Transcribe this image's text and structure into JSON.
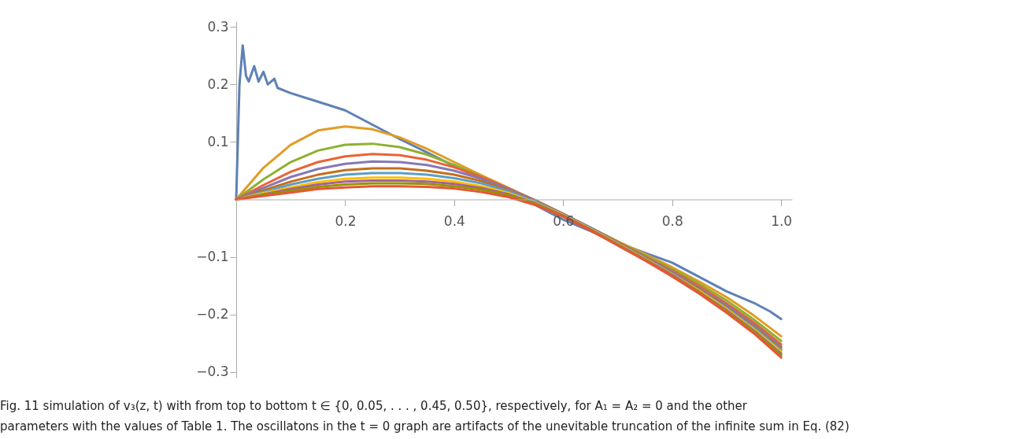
{
  "chart_data": {
    "type": "line",
    "x": [
      0,
      0.05,
      0.1,
      0.15,
      0.2,
      0.25,
      0.3,
      0.35,
      0.4,
      0.45,
      0.5,
      0.55,
      0.6,
      0.65,
      0.7,
      0.75,
      0.8,
      0.85,
      0.9,
      0.95,
      1.0
    ],
    "series": [
      {
        "color": "#5e81b5",
        "x": [
          0,
          0.006,
          0.012,
          0.018,
          0.023,
          0.033,
          0.041,
          0.05,
          0.058,
          0.07,
          0.076,
          0.1,
          0.15,
          0.2,
          0.25,
          0.3,
          0.35,
          0.4,
          0.45,
          0.5,
          0.55,
          0.6,
          0.65,
          0.7,
          0.75,
          0.8,
          0.85,
          0.9,
          0.95,
          0.98,
          1.0
        ],
        "values": [
          0,
          0.2,
          0.268,
          0.215,
          0.205,
          0.232,
          0.205,
          0.222,
          0.2,
          0.21,
          0.194,
          0.185,
          0.17,
          0.155,
          0.13,
          0.105,
          0.082,
          0.058,
          0.036,
          0.015,
          -0.01,
          -0.035,
          -0.055,
          -0.075,
          -0.093,
          -0.11,
          -0.135,
          -0.16,
          -0.18,
          -0.195,
          -0.208
        ]
      },
      {
        "color": "#e19c24",
        "values": [
          0,
          0.055,
          0.095,
          0.12,
          0.127,
          0.122,
          0.108,
          0.088,
          0.065,
          0.042,
          0.02,
          -0.003,
          -0.027,
          -0.05,
          -0.073,
          -0.095,
          -0.118,
          -0.143,
          -0.17,
          -0.202,
          -0.238
        ]
      },
      {
        "color": "#8fb032",
        "values": [
          0,
          0.035,
          0.065,
          0.085,
          0.095,
          0.097,
          0.091,
          0.078,
          0.06,
          0.04,
          0.019,
          -0.003,
          -0.026,
          -0.049,
          -0.073,
          -0.097,
          -0.121,
          -0.147,
          -0.176,
          -0.209,
          -0.246
        ]
      },
      {
        "color": "#eb6235",
        "values": [
          0,
          0.025,
          0.048,
          0.065,
          0.075,
          0.079,
          0.077,
          0.069,
          0.056,
          0.039,
          0.019,
          -0.002,
          -0.025,
          -0.049,
          -0.074,
          -0.099,
          -0.124,
          -0.151,
          -0.181,
          -0.214,
          -0.252
        ]
      },
      {
        "color": "#8778b3",
        "values": [
          0,
          0.02,
          0.039,
          0.053,
          0.062,
          0.066,
          0.065,
          0.06,
          0.05,
          0.036,
          0.018,
          -0.002,
          -0.025,
          -0.049,
          -0.075,
          -0.1,
          -0.126,
          -0.154,
          -0.184,
          -0.218,
          -0.256
        ]
      },
      {
        "color": "#c56e1a",
        "values": [
          0,
          0.016,
          0.031,
          0.043,
          0.051,
          0.054,
          0.054,
          0.05,
          0.043,
          0.032,
          0.016,
          -0.003,
          -0.025,
          -0.05,
          -0.075,
          -0.101,
          -0.128,
          -0.156,
          -0.187,
          -0.221,
          -0.259
        ]
      },
      {
        "color": "#5d9ec7",
        "values": [
          0,
          0.013,
          0.026,
          0.036,
          0.043,
          0.046,
          0.046,
          0.043,
          0.037,
          0.028,
          0.014,
          -0.004,
          -0.026,
          -0.05,
          -0.076,
          -0.102,
          -0.129,
          -0.158,
          -0.189,
          -0.223,
          -0.262
        ]
      },
      {
        "color": "#ffbf00",
        "values": [
          0,
          0.011,
          0.021,
          0.03,
          0.036,
          0.038,
          0.038,
          0.036,
          0.031,
          0.023,
          0.011,
          -0.006,
          -0.027,
          -0.051,
          -0.077,
          -0.103,
          -0.13,
          -0.159,
          -0.191,
          -0.226,
          -0.265
        ]
      },
      {
        "color": "#a5609d",
        "values": [
          0,
          0.009,
          0.018,
          0.026,
          0.031,
          0.033,
          0.033,
          0.031,
          0.027,
          0.02,
          0.009,
          -0.007,
          -0.028,
          -0.052,
          -0.078,
          -0.104,
          -0.131,
          -0.161,
          -0.193,
          -0.228,
          -0.268
        ]
      },
      {
        "color": "#929600",
        "values": [
          0,
          0.008,
          0.015,
          0.022,
          0.026,
          0.028,
          0.028,
          0.027,
          0.023,
          0.017,
          0.007,
          -0.008,
          -0.029,
          -0.053,
          -0.079,
          -0.105,
          -0.133,
          -0.162,
          -0.195,
          -0.23,
          -0.271
        ]
      },
      {
        "color": "#e95536",
        "values": [
          0,
          0.006,
          0.012,
          0.018,
          0.021,
          0.023,
          0.023,
          0.022,
          0.019,
          0.013,
          0.004,
          -0.01,
          -0.03,
          -0.054,
          -0.08,
          -0.106,
          -0.134,
          -0.164,
          -0.197,
          -0.233,
          -0.275
        ]
      }
    ],
    "xlim": [
      0,
      1.02
    ],
    "ylim": [
      -0.31,
      0.31
    ],
    "xticks": [
      0.2,
      0.4,
      0.6,
      0.8,
      {
        "value": 1.0,
        "label": "1.0"
      }
    ],
    "yticks": [
      -0.3,
      -0.2,
      -0.1,
      0.1,
      0.2,
      0.3
    ],
    "grid": false,
    "legend": false,
    "marker": "none",
    "line_style": "solid",
    "annotations": [
      "Fig. 11 simulation of v₃(z, t) with from top to bottom t ∈ {0, 0.05, . . . , 0.45, 0.50}, respectively, for A₁ = A₂ = 0 and the other",
      "parameters with the values of Table 1. The oscillatons in the t = 0 graph are artifacts of the unevitable truncation of the infinite sum in Eq. (82)"
    ]
  }
}
